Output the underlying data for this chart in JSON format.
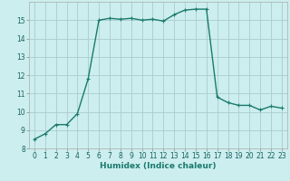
{
  "x": [
    0,
    1,
    2,
    3,
    4,
    5,
    6,
    7,
    8,
    9,
    10,
    11,
    12,
    13,
    14,
    15,
    16,
    17,
    18,
    19,
    20,
    21,
    22,
    23
  ],
  "y": [
    8.5,
    8.8,
    9.3,
    9.3,
    9.9,
    11.8,
    15.0,
    15.1,
    15.05,
    15.1,
    15.0,
    15.05,
    14.95,
    15.3,
    15.55,
    15.6,
    15.6,
    10.8,
    10.5,
    10.35,
    10.35,
    10.1,
    10.3,
    10.2
  ],
  "line_color": "#1a7a6e",
  "marker": "+",
  "marker_size": 3,
  "bg_color": "#cceeee",
  "grid_color": "#aacccc",
  "xlabel": "Humidex (Indice chaleur)",
  "xlim": [
    -0.5,
    23.5
  ],
  "ylim": [
    8,
    16
  ],
  "yticks": [
    8,
    9,
    10,
    11,
    12,
    13,
    14,
    15
  ],
  "xtick_labels": [
    "0",
    "1",
    "2",
    "3",
    "4",
    "5",
    "6",
    "7",
    "8",
    "9",
    "10",
    "11",
    "12",
    "13",
    "14",
    "15",
    "16",
    "17",
    "18",
    "19",
    "20",
    "21",
    "22",
    "23"
  ],
  "tick_fontsize": 5.5,
  "xlabel_fontsize": 6.5,
  "linewidth": 1.0
}
